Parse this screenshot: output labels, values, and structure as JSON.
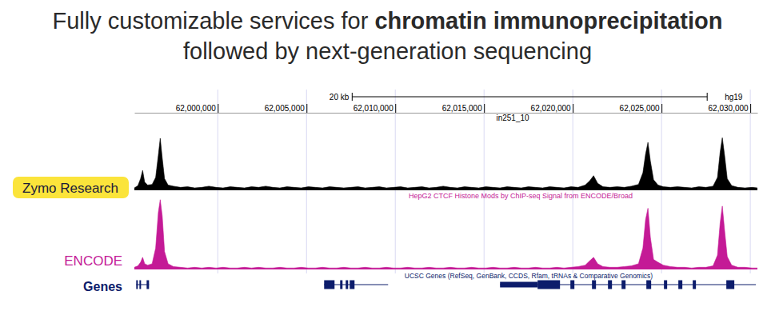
{
  "header": {
    "title": [
      [
        {
          "text": "Fully customizable services for ",
          "weight": "normal"
        },
        {
          "text": "chromatin immunoprecipitation",
          "weight": "bold"
        }
      ],
      [
        {
          "text": "followed by next-generation sequencing",
          "weight": "normal"
        }
      ]
    ]
  },
  "chart_data": {
    "type": "area",
    "assembly": "hg19",
    "scale_bar": {
      "label": "20 kb",
      "start": 62007570,
      "length": 20000
    },
    "xlim": [
      61995300,
      62030400
    ],
    "xticks": [
      {
        "value": 62000000,
        "label": "62,000,000"
      },
      {
        "value": 62005000,
        "label": "62,005,000"
      },
      {
        "value": 62010000,
        "label": "62,010,000"
      },
      {
        "value": 62015000,
        "label": "62,015,000"
      },
      {
        "value": 62020000,
        "label": "62,020,000"
      },
      {
        "value": 62025000,
        "label": "62,025,000"
      },
      {
        "value": 62030000,
        "label": "62,030,000"
      }
    ],
    "ylim": [
      0,
      100
    ],
    "grid": true,
    "tick_labels": "x",
    "x": [
      61995300,
      61995500,
      61995650,
      61995766,
      61995880,
      61996050,
      61996300,
      61996500,
      61996650,
      61996757,
      61996870,
      61997000,
      61997200,
      61997500,
      61997900,
      61998300,
      61998700,
      61999100,
      61999500,
      61999900,
      62000300,
      62000700,
      62001100,
      62001500,
      62001900,
      62002300,
      62002700,
      62003100,
      62003500,
      62003900,
      62004300,
      62004700,
      62005100,
      62005500,
      62005900,
      62006300,
      62006700,
      62007100,
      62007500,
      62007900,
      62008300,
      62008700,
      62009100,
      62009500,
      62009900,
      62010300,
      62010700,
      62011100,
      62011500,
      62011900,
      62012300,
      62012700,
      62013100,
      62013500,
      62013900,
      62014300,
      62014700,
      62015100,
      62015500,
      62015900,
      62016300,
      62016700,
      62017100,
      62017500,
      62017900,
      62018300,
      62018700,
      62019100,
      62019500,
      62019900,
      62020300,
      62020700,
      62020950,
      62021171,
      62021400,
      62021700,
      62022100,
      62022500,
      62022900,
      62023300,
      62023700,
      62023950,
      62024100,
      62024234,
      62024370,
      62024550,
      62024800,
      62025100,
      62025500,
      62025900,
      62026300,
      62026700,
      62027100,
      62027500,
      62027900,
      62028150,
      62028300,
      62028423,
      62028550,
      62028700,
      62028950,
      62029300,
      62029700,
      62030100,
      62030400
    ],
    "series": [
      {
        "name": "Zymo Research",
        "track_title": "in251_10",
        "color": "#000000",
        "values": [
          4,
          8,
          20,
          34,
          14,
          9,
          10,
          22,
          60,
          89,
          55,
          20,
          9,
          7,
          5,
          6,
          4,
          5,
          7,
          5,
          4,
          6,
          5,
          4,
          6,
          5,
          7,
          5,
          4,
          6,
          5,
          4,
          6,
          5,
          4,
          6,
          5,
          4,
          5,
          6,
          4,
          5,
          6,
          4,
          5,
          6,
          4,
          5,
          6,
          4,
          5,
          7,
          5,
          4,
          6,
          5,
          4,
          6,
          5,
          4,
          6,
          5,
          4,
          6,
          5,
          4,
          6,
          5,
          4,
          6,
          5,
          9,
          16,
          25,
          12,
          6,
          5,
          6,
          5,
          7,
          10,
          30,
          62,
          82,
          50,
          18,
          9,
          6,
          5,
          6,
          5,
          4,
          6,
          5,
          7,
          22,
          65,
          90,
          60,
          20,
          8,
          5,
          4,
          5,
          4
        ]
      },
      {
        "name": "ENCODE",
        "track_title": "HepG2 CTCF Histone Mods by ChIP-seq Signal from ENCODE/Broad",
        "color": "#c41a96",
        "values": [
          3,
          5,
          10,
          17,
          8,
          6,
          8,
          30,
          80,
          98,
          75,
          25,
          8,
          4,
          3,
          2,
          3,
          2,
          3,
          2,
          3,
          2,
          2,
          3,
          2,
          3,
          2,
          2,
          3,
          2,
          2,
          3,
          2,
          2,
          3,
          2,
          2,
          3,
          2,
          2,
          3,
          2,
          2,
          3,
          2,
          2,
          3,
          2,
          2,
          3,
          2,
          2,
          3,
          2,
          2,
          3,
          2,
          2,
          3,
          2,
          2,
          3,
          2,
          2,
          3,
          2,
          2,
          3,
          2,
          3,
          4,
          6,
          12,
          17,
          8,
          4,
          3,
          3,
          4,
          5,
          8,
          30,
          70,
          86,
          45,
          14,
          10,
          6,
          4,
          3,
          3,
          2,
          3,
          3,
          5,
          20,
          65,
          89,
          55,
          18,
          6,
          3,
          3,
          2,
          2
        ]
      }
    ],
    "genes": {
      "name": "Genes",
      "title": "UCSC Genes (RefSeq, GenBank, CCDS, Rfam, tRNAs & Comparative Genomics)",
      "color": "#0c1c6b",
      "items": [
        {
          "start": 61995405,
          "end": 61996126,
          "exons": [
            [
              61995405,
              61995495
            ],
            [
              61995586,
              61995676
            ],
            [
              61995991,
              61996126
            ]
          ]
        },
        {
          "start": 62005991,
          "end": 62009595,
          "exons": [
            [
              62005991,
              62006577
            ],
            [
              62006892,
              62007027
            ],
            [
              62007207,
              62007342
            ],
            [
              62007432,
              62007703
            ]
          ]
        },
        {
          "start": 62015901,
          "end": 62030315,
          "utr": [
            [
              62015901,
              62018018
            ]
          ],
          "exons": [
            [
              62018018,
              62019279
            ],
            [
              62019865,
              62020090
            ],
            [
              62021081,
              62021306
            ],
            [
              62021982,
              62022207
            ],
            [
              62022748,
              62022973
            ],
            [
              62024144,
              62024414
            ],
            [
              62025135,
              62025315
            ],
            [
              62025946,
              62026171
            ],
            [
              62026757,
              62026937
            ],
            [
              62028649,
              62029099
            ]
          ]
        }
      ]
    }
  }
}
